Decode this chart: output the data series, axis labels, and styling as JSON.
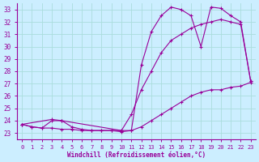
{
  "bg_color": "#cceeff",
  "line_color": "#990099",
  "grid_color": "#aadddd",
  "xlabel": "Windchill (Refroidissement éolien,°C)",
  "xlabel_color": "#990099",
  "tick_color": "#990099",
  "xlim": [
    -0.5,
    23.5
  ],
  "ylim": [
    22.5,
    33.5
  ],
  "yticks": [
    23,
    24,
    25,
    26,
    27,
    28,
    29,
    30,
    31,
    32,
    33
  ],
  "xticks": [
    0,
    1,
    2,
    3,
    4,
    5,
    6,
    7,
    8,
    9,
    10,
    11,
    12,
    13,
    14,
    15,
    16,
    17,
    18,
    19,
    20,
    21,
    22,
    23
  ],
  "line1_x": [
    0,
    1,
    2,
    3,
    4,
    5,
    6,
    7,
    8,
    9,
    10,
    11,
    12,
    13,
    14,
    15,
    16,
    17,
    18,
    19,
    20,
    21,
    22,
    23
  ],
  "line1_y": [
    23.7,
    23.5,
    23.4,
    23.4,
    23.3,
    23.3,
    23.2,
    23.2,
    23.2,
    23.2,
    23.1,
    23.2,
    23.5,
    24.0,
    24.5,
    25.0,
    25.5,
    26.0,
    26.3,
    26.5,
    26.5,
    26.7,
    26.8,
    27.1
  ],
  "line2_x": [
    0,
    1,
    2,
    3,
    4,
    5,
    6,
    7,
    8,
    9,
    10,
    11,
    12,
    13,
    14,
    15,
    16,
    17,
    18,
    19,
    20,
    21,
    22,
    23
  ],
  "line2_y": [
    23.7,
    23.5,
    23.4,
    24.0,
    24.0,
    23.5,
    23.3,
    23.2,
    23.2,
    23.2,
    23.2,
    24.5,
    26.5,
    28.0,
    29.5,
    30.5,
    31.0,
    31.5,
    31.8,
    32.0,
    32.2,
    32.0,
    31.8,
    27.2
  ],
  "line3_x": [
    0,
    3,
    4,
    10,
    11,
    12,
    13,
    14,
    15,
    16,
    17,
    18,
    19,
    20,
    21,
    22,
    23
  ],
  "line3_y": [
    23.7,
    24.1,
    24.0,
    23.2,
    23.2,
    28.5,
    31.2,
    32.5,
    33.2,
    33.0,
    32.5,
    30.0,
    33.2,
    33.1,
    32.5,
    32.0,
    27.2
  ]
}
